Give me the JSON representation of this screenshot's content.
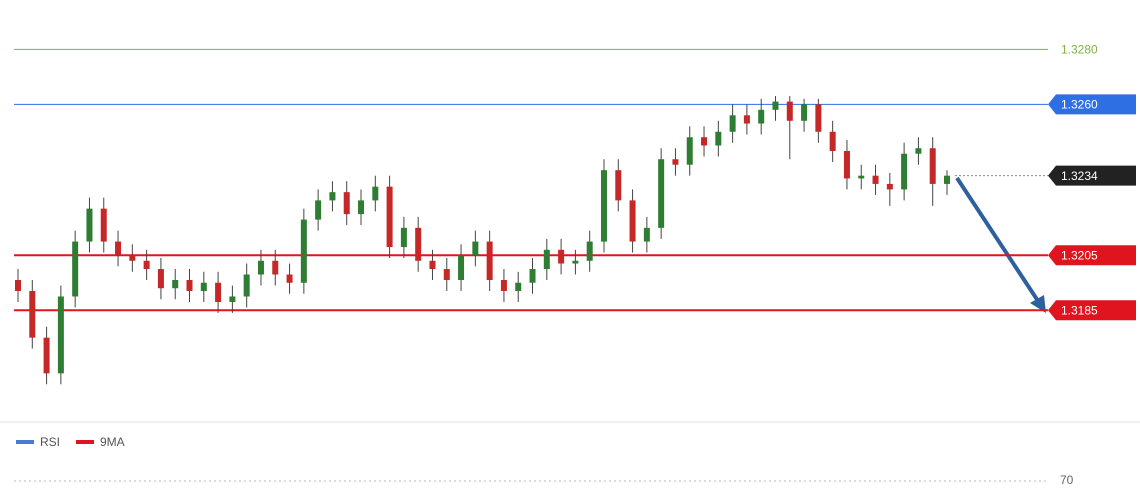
{
  "chart_data": {
    "type": "candlestick",
    "up_color": "#2e7d32",
    "down_color": "#c62828",
    "ylim": [
      1.3145,
      1.3298
    ],
    "open": [
      1.3196,
      1.3192,
      1.3175,
      1.3162,
      1.319,
      1.321,
      1.3222,
      1.321,
      1.3205,
      1.3203,
      1.32,
      1.3193,
      1.3196,
      1.3192,
      1.3195,
      1.3188,
      1.319,
      1.3198,
      1.3203,
      1.3198,
      1.3195,
      1.3218,
      1.3225,
      1.3228,
      1.322,
      1.3225,
      1.323,
      1.3208,
      1.3215,
      1.3203,
      1.32,
      1.3196,
      1.3205,
      1.321,
      1.3196,
      1.3192,
      1.3195,
      1.32,
      1.3207,
      1.3202,
      1.3203,
      1.321,
      1.3236,
      1.3225,
      1.321,
      1.3215,
      1.324,
      1.3238,
      1.3248,
      1.3245,
      1.325,
      1.3256,
      1.3253,
      1.3258,
      1.3261,
      1.3254,
      1.326,
      1.325,
      1.3243,
      1.3233,
      1.3234,
      1.3231,
      1.3229,
      1.3242,
      1.3244,
      1.3231
    ],
    "high": [
      1.32,
      1.3196,
      1.3179,
      1.3194,
      1.3214,
      1.3226,
      1.3226,
      1.3214,
      1.3209,
      1.3207,
      1.3204,
      1.32,
      1.32,
      1.3199,
      1.3199,
      1.3194,
      1.3202,
      1.3207,
      1.3207,
      1.3202,
      1.3222,
      1.3229,
      1.3232,
      1.3232,
      1.3229,
      1.3234,
      1.3234,
      1.3219,
      1.3219,
      1.3207,
      1.3204,
      1.3209,
      1.3214,
      1.3214,
      1.32,
      1.3199,
      1.3204,
      1.3211,
      1.3211,
      1.3207,
      1.3214,
      1.324,
      1.324,
      1.3229,
      1.3219,
      1.3244,
      1.3244,
      1.3252,
      1.3252,
      1.3254,
      1.326,
      1.326,
      1.3262,
      1.3263,
      1.3263,
      1.3262,
      1.3262,
      1.3254,
      1.3247,
      1.3238,
      1.3238,
      1.3235,
      1.3246,
      1.3248,
      1.3248,
      1.3236
    ],
    "low": [
      1.3188,
      1.3171,
      1.3158,
      1.3158,
      1.3186,
      1.3206,
      1.3206,
      1.3201,
      1.3199,
      1.3196,
      1.3189,
      1.3189,
      1.3188,
      1.3188,
      1.3184,
      1.3184,
      1.3186,
      1.3194,
      1.3194,
      1.3191,
      1.3191,
      1.3214,
      1.3221,
      1.3216,
      1.3216,
      1.3221,
      1.3204,
      1.3204,
      1.3199,
      1.3196,
      1.3192,
      1.3192,
      1.3201,
      1.3192,
      1.3188,
      1.3188,
      1.3191,
      1.3196,
      1.3198,
      1.3198,
      1.3199,
      1.3206,
      1.3221,
      1.3206,
      1.3206,
      1.3211,
      1.3234,
      1.3234,
      1.3241,
      1.3241,
      1.3246,
      1.3249,
      1.3249,
      1.3254,
      1.324,
      1.325,
      1.3246,
      1.3239,
      1.3229,
      1.3229,
      1.3227,
      1.3223,
      1.3225,
      1.3238,
      1.3223,
      1.3227
    ],
    "close": [
      1.3192,
      1.3175,
      1.3162,
      1.319,
      1.321,
      1.3222,
      1.321,
      1.3205,
      1.3203,
      1.32,
      1.3193,
      1.3196,
      1.3192,
      1.3195,
      1.3188,
      1.319,
      1.3198,
      1.3203,
      1.3198,
      1.3195,
      1.3218,
      1.3225,
      1.3228,
      1.322,
      1.3225,
      1.323,
      1.3208,
      1.3215,
      1.3203,
      1.32,
      1.3196,
      1.3205,
      1.321,
      1.3196,
      1.3192,
      1.3195,
      1.32,
      1.3207,
      1.3202,
      1.3203,
      1.321,
      1.3236,
      1.3225,
      1.321,
      1.3215,
      1.324,
      1.3238,
      1.3248,
      1.3245,
      1.325,
      1.3256,
      1.3253,
      1.3258,
      1.3261,
      1.3254,
      1.326,
      1.325,
      1.3243,
      1.3233,
      1.3234,
      1.3231,
      1.3229,
      1.3242,
      1.3244,
      1.3231,
      1.3234
    ],
    "levels": [
      {
        "value": 1.328,
        "label": "1.3280",
        "color": "#7cb342",
        "boxed": false,
        "width": 1
      },
      {
        "value": 1.326,
        "label": "1.3260",
        "color": "#2f6fe4",
        "boxed": true,
        "width": 1
      },
      {
        "value": 1.3234,
        "label": "1.3234",
        "color": "#222222",
        "boxed": true,
        "width": 0
      },
      {
        "value": 1.3205,
        "label": "1.3205",
        "color": "#e0141e",
        "boxed": true,
        "width": 2
      },
      {
        "value": 1.3185,
        "label": "1.3185",
        "color": "#e0141e",
        "boxed": true,
        "width": 2
      }
    ],
    "rsi": {
      "series": [
        {
          "name": "RSI",
          "color": "#4a7bd0"
        },
        {
          "name": "9MA",
          "color": "#e0141e"
        }
      ],
      "ylim": [
        0,
        100
      ],
      "yticks": [
        70
      ]
    }
  }
}
